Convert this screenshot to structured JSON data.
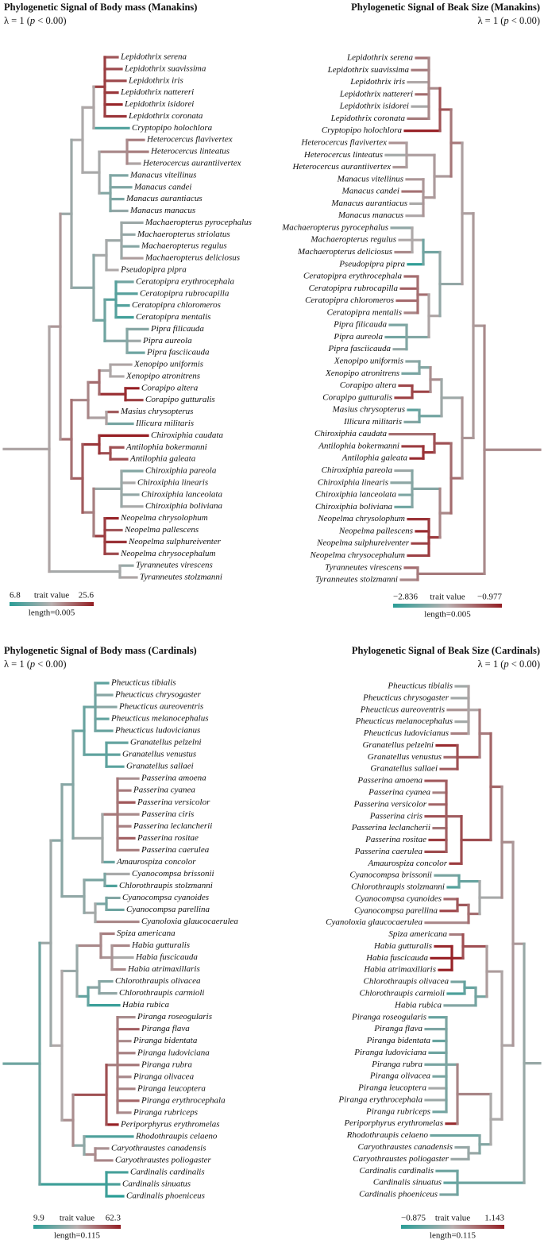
{
  "panels": [
    {
      "title": "Phylogenetic Signal of Body mass (Manakins)",
      "lambda": {
        "prefix": "λ = 1 (",
        "p": "p",
        "suffix": " < 0.00)"
      },
      "species": [
        "Lepidothrix serena",
        "Lepidothrix suavissima",
        "Lepidothrix iris",
        "Lepidothrix nattereri",
        "Lepidothrix isidorei",
        "Lepidothrix coronata",
        "Cryptopipo holochlora",
        "Heterocercus flavivertex",
        "Heterocercus linteatus",
        "Heterocercus aurantiivertex",
        "Manacus vitellinus",
        "Manacus candei",
        "Manacus aurantiacus",
        "Manacus manacus",
        "Machaeropterus pyrocephalus",
        "Machaeropterus striolatus",
        "Machaeropterus regulus",
        "Machaeropterus deliciosus",
        "Pseudopipra pipra",
        "Ceratopipra erythrocephala",
        "Ceratopipra rubrocapilla",
        "Ceratopipra chloromeros",
        "Ceratopipra mentalis",
        "Pipra filicauda",
        "Pipra aureola",
        "Pipra fasciicauda",
        "Xenopipo uniformis",
        "Xenopipo atronitrens",
        "Corapipo altera",
        "Corapipo gutturalis",
        "Masius chrysopterus",
        "Illicura militaris",
        "Chiroxiphia caudata",
        "Antilophia bokermanni",
        "Antilophia galeata",
        "Chiroxiphia pareola",
        "Chiroxiphia linearis",
        "Chiroxiphia lanceolata",
        "Chiroxiphia boliviana",
        "Neopelma chrysolophum",
        "Neopelma pallescens",
        "Neopelma sulphureiventer",
        "Neopelma chrysocephalum",
        "Tyranneutes virescens",
        "Tyranneutes stolzmanni"
      ],
      "legend": {
        "min": "6.8",
        "label": "trait value",
        "max": "25.6",
        "length": "length=0.005"
      }
    },
    {
      "title": "Phylogenetic Signal of Beak Size (Manakins)",
      "lambda": {
        "prefix": "λ = 1 (",
        "p": "p",
        "suffix": " < 0.00)"
      },
      "species": [
        "Lepidothrix serena",
        "Lepidothrix suavissima",
        "Lepidothrix iris",
        "Lepidothrix nattereri",
        "Lepidothrix isidorei",
        "Lepidothrix coronata",
        "Cryptopipo holochlora",
        "Heterocercus flavivertex",
        "Heterocercus linteatus",
        "Heterocercus aurantiivertex",
        "Manacus vitellinus",
        "Manacus candei",
        "Manacus aurantiacus",
        "Manacus manacus",
        "Machaeropterus pyrocephalus",
        "Machaeropterus regulus",
        "Machaeropterus deliciosus",
        "Pseudopipra pipra",
        "Ceratopipra erythrocephala",
        "Ceratopipra rubrocapilla",
        "Ceratopipra chloromeros",
        "Ceratopipra mentalis",
        "Pipra filicauda",
        "Pipra aureola",
        "Pipra fasciicauda",
        "Xenopipo uniformis",
        "Xenopipo atronitrens",
        "Corapipo altera",
        "Corapipo gutturalis",
        "Masius chrysopterus",
        "Illicura militaris",
        "Chiroxiphia caudata",
        "Antilophia bokermanni",
        "Antilophia galeata",
        "Chiroxiphia pareola",
        "Chiroxiphia linearis",
        "Chiroxiphia lanceolata",
        "Chiroxiphia boliviana",
        "Neopelma chrysolophum",
        "Neopelma pallescens",
        "Neopelma sulphureiventer",
        "Neopelma chrysocephalum",
        "Tyranneutes virescens",
        "Tyranneutes stolzmanni"
      ],
      "legend": {
        "min": "−2.836",
        "label": "trait value",
        "max": "−0.977",
        "length": "length=0.005"
      }
    },
    {
      "title": "Phylogenetic Signal of Body mass (Cardinals)",
      "lambda": {
        "prefix": "λ = 1 (",
        "p": "p",
        "suffix": " < 0.00)"
      },
      "species": [
        "Pheucticus tibialis",
        "Pheucticus chrysogaster",
        "Pheucticus aureoventris",
        "Pheucticus melanocephalus",
        "Pheucticus ludovicianus",
        "Granatellus pelzelni",
        "Granatellus venustus",
        "Granatellus sallaei",
        "Passerina amoena",
        "Passerina cyanea",
        "Passerina versicolor",
        "Passerina ciris",
        "Passerina leclancherii",
        "Passerina rositae",
        "Passerina caerulea",
        "Amaurospiza concolor",
        "Cyanocompsa brissonii",
        "Chlorothraupis stolzmanni",
        "Cyanocompsa cyanoides",
        "Cyanocompsa parellina",
        "Cyanoloxia glaucocaerulea",
        "Spiza americana",
        "Habia gutturalis",
        "Habia fuscicauda",
        "Habia atrimaxillaris",
        "Chlorothraupis olivacea",
        "Chlorothraupis carmioli",
        "Habia rubica",
        "Piranga roseogularis",
        "Piranga flava",
        "Piranga bidentata",
        "Piranga ludoviciana",
        "Piranga rubra",
        "Piranga olivacea",
        "Piranga leucoptera",
        "Piranga erythrocephala",
        "Piranga rubriceps",
        "Periporphyrus erythromelas",
        "Rhodothraupis celaeno",
        "Caryothraustes canadensis",
        "Caryothraustes poliogaster",
        "Cardinalis cardinalis",
        "Cardinalis sinuatus",
        "Cardinalis phoeniceus"
      ],
      "legend": {
        "min": "9.9",
        "label": "trait value",
        "max": "62.3",
        "length": "length=0.115"
      }
    },
    {
      "title": "Phylogenetic Signal of Beak Size (Cardinals)",
      "lambda": {
        "prefix": "λ = 1 (",
        "p": "p",
        "suffix": " < 0.00)"
      },
      "species": [
        "Pheucticus tibialis",
        "Pheucticus chrysogaster",
        "Pheucticus aureoventris",
        "Pheucticus melanocephalus",
        "Pheucticus ludovicianus",
        "Granatellus pelzelni",
        "Granatellus venustus",
        "Granatellus sallaei",
        "Passerina amoena",
        "Passerina cyanea",
        "Passerina versicolor",
        "Passerina ciris",
        "Passerina leclancherii",
        "Passerina rositae",
        "Passerina caerulea",
        "Amaurospiza concolor",
        "Cyanocompsa brissonii",
        "Chlorothraupis stolzmanni",
        "Cyanocompsa cyanoides",
        "Cyanocompsa parellina",
        "Cyanoloxia glaucocaerulea",
        "Spiza americana",
        "Habia gutturalis",
        "Habia fuscicauda",
        "Habia atrimaxillaris",
        "Chlorothraupis olivacea",
        "Chlorothraupis carmioli",
        "Habia rubica",
        "Piranga roseogularis",
        "Piranga flava",
        "Piranga bidentata",
        "Piranga ludoviciana",
        "Piranga rubra",
        "Piranga olivacea",
        "Piranga leucoptera",
        "Piranga erythrocephala",
        "Piranga rubriceps",
        "Periporphyrus erythromelas",
        "Rhodothraupis celaeno",
        "Caryothraustes canadensis",
        "Caryothraustes poliogaster",
        "Cardinalis cardinalis",
        "Cardinalis sinuatus",
        "Cardinalis phoeniceus"
      ],
      "legend": {
        "min": "−0.875",
        "label": "trait value",
        "max": "1.143",
        "length": "length=0.115"
      }
    }
  ]
}
